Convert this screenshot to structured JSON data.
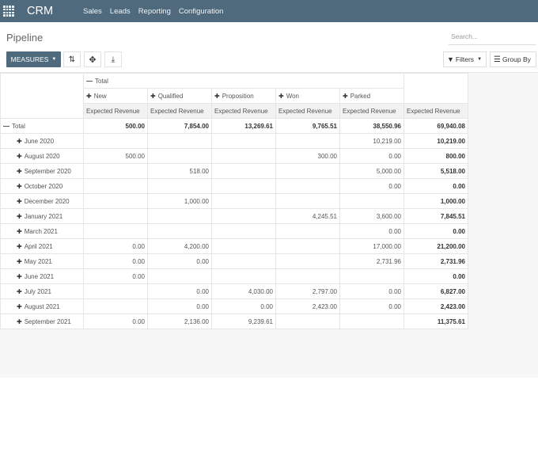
{
  "app": {
    "name": "CRM"
  },
  "menu": [
    "Sales",
    "Leads",
    "Reporting",
    "Configuration"
  ],
  "breadcrumb": "Pipeline",
  "search": {
    "placeholder": "Search..."
  },
  "toolbar": {
    "measures": "MEASURES",
    "filters": "Filters",
    "groupby": "Group By"
  },
  "pivot": {
    "col_total": "Total",
    "stages": [
      "New",
      "Qualified",
      "Proposition",
      "Won",
      "Parked"
    ],
    "measure": "Expected Revenue",
    "row_total_label": "Total",
    "total_row": [
      "500.00",
      "7,854.00",
      "13,269.61",
      "9,765.51",
      "38,550.96",
      "69,940.08"
    ],
    "rows": [
      {
        "label": "June 2020",
        "cells": [
          "",
          "",
          "",
          "",
          "10,219.00",
          "10,219.00"
        ]
      },
      {
        "label": "August 2020",
        "cells": [
          "500.00",
          "",
          "",
          "300.00",
          "0.00",
          "800.00"
        ]
      },
      {
        "label": "September 2020",
        "cells": [
          "",
          "518.00",
          "",
          "",
          "5,000.00",
          "5,518.00"
        ]
      },
      {
        "label": "October 2020",
        "cells": [
          "",
          "",
          "",
          "",
          "0.00",
          "0.00"
        ]
      },
      {
        "label": "December 2020",
        "cells": [
          "",
          "1,000.00",
          "",
          "",
          "",
          "1,000.00"
        ]
      },
      {
        "label": "January 2021",
        "cells": [
          "",
          "",
          "",
          "4,245.51",
          "3,600.00",
          "7,845.51"
        ]
      },
      {
        "label": "March 2021",
        "cells": [
          "",
          "",
          "",
          "",
          "0.00",
          "0.00"
        ]
      },
      {
        "label": "April 2021",
        "cells": [
          "0.00",
          "4,200.00",
          "",
          "",
          "17,000.00",
          "21,200.00"
        ]
      },
      {
        "label": "May 2021",
        "cells": [
          "0.00",
          "0.00",
          "",
          "",
          "2,731.96",
          "2,731.96"
        ]
      },
      {
        "label": "June 2021",
        "cells": [
          "0.00",
          "",
          "",
          "",
          "",
          "0.00"
        ]
      },
      {
        "label": "July 2021",
        "cells": [
          "",
          "0.00",
          "4,030.00",
          "2,797.00",
          "0.00",
          "6,827.00"
        ]
      },
      {
        "label": "August 2021",
        "cells": [
          "",
          "0.00",
          "0.00",
          "2,423.00",
          "0.00",
          "2,423.00"
        ]
      },
      {
        "label": "September 2021",
        "cells": [
          "0.00",
          "2,136.00",
          "9,239.61",
          "",
          "",
          "11,375.61"
        ]
      }
    ]
  }
}
